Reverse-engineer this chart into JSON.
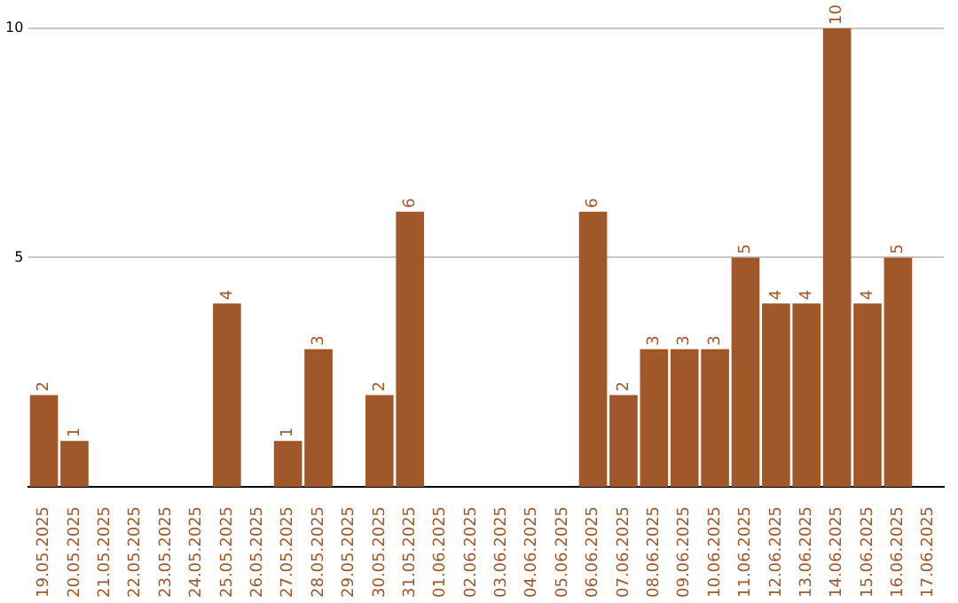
{
  "chart_data": {
    "type": "bar",
    "categories": [
      "19.05.2025",
      "20.05.2025",
      "21.05.2025",
      "22.05.2025",
      "23.05.2025",
      "24.05.2025",
      "25.05.2025",
      "26.05.2025",
      "27.05.2025",
      "28.05.2025",
      "29.05.2025",
      "30.05.2025",
      "31.05.2025",
      "01.06.2025",
      "02.06.2025",
      "03.06.2025",
      "04.06.2025",
      "05.06.2025",
      "06.06.2025",
      "07.06.2025",
      "08.06.2025",
      "09.06.2025",
      "10.06.2025",
      "11.06.2025",
      "12.06.2025",
      "13.06.2025",
      "14.06.2025",
      "15.06.2025",
      "16.06.2025",
      "17.06.2025"
    ],
    "values": [
      2,
      1,
      0,
      0,
      0,
      0,
      4,
      0,
      1,
      3,
      0,
      2,
      6,
      0,
      0,
      0,
      0,
      0,
      6,
      2,
      3,
      3,
      3,
      5,
      4,
      4,
      10,
      4,
      5,
      0
    ],
    "value_labels": [
      "2",
      "1",
      null,
      null,
      null,
      null,
      "4",
      null,
      "1",
      "3",
      null,
      "2",
      "6",
      null,
      null,
      null,
      null,
      null,
      "6",
      "2",
      "3",
      "3",
      "3",
      "5",
      "4",
      "4",
      "10",
      "4",
      "5",
      null
    ],
    "color": "#a0582a",
    "ylim": [
      0,
      10
    ],
    "yticks": [
      5,
      10
    ],
    "grid": "y",
    "legend": false
  }
}
